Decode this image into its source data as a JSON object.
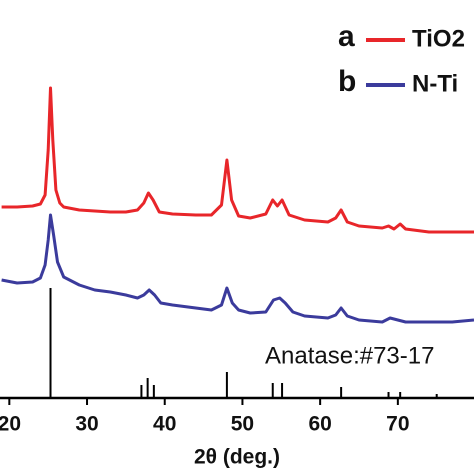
{
  "chart_data": {
    "type": "line",
    "xlabel": "2θ (deg.)",
    "xlim": [
      18.8,
      79.8
    ],
    "xticks": [
      20,
      30,
      40,
      50,
      60,
      70
    ],
    "ylim": [
      0,
      398
    ],
    "series": [
      {
        "name": "TiO2",
        "label": "a",
        "color": "#e8262a",
        "x": [
          19,
          21,
          23,
          24,
          24.6,
          25,
          25.3,
          25.6,
          26,
          26.5,
          27,
          29,
          31,
          33,
          35,
          36.5,
          37.3,
          37.9,
          38.5,
          39.3,
          41,
          44,
          46,
          47.3,
          48,
          48.6,
          49.5,
          51,
          53,
          53.9,
          54.5,
          55.1,
          56,
          58,
          61,
          62,
          62.7,
          63.5,
          65,
          68,
          68.8,
          69.5,
          70.3,
          71,
          74,
          77,
          79.8
        ],
        "values": [
          191,
          191,
          192,
          194,
          203,
          248,
          310,
          258,
          208,
          195,
          191,
          188,
          187,
          186,
          186,
          188,
          195,
          205,
          198,
          186,
          184,
          183,
          183,
          193,
          238,
          198,
          182,
          180,
          184,
          198,
          192,
          198,
          183,
          178,
          176,
          180,
          188,
          176,
          172,
          170,
          172,
          169,
          174,
          169,
          166,
          166,
          166
        ]
      },
      {
        "name": "N-Ti",
        "label": "b",
        "color": "#3b3b9c",
        "x": [
          19,
          21,
          23,
          24,
          24.6,
          25,
          25.3,
          25.7,
          26.2,
          27,
          29,
          31,
          33,
          35,
          36.5,
          37.3,
          38,
          38.7,
          39.5,
          41,
          44,
          46,
          47.3,
          48,
          48.7,
          49.5,
          51,
          53,
          54,
          54.8,
          55.5,
          56.5,
          58,
          61,
          62,
          62.7,
          63.5,
          65,
          68,
          69,
          70,
          71,
          74,
          77,
          79.8
        ],
        "values": [
          118,
          115,
          116,
          120,
          133,
          158,
          183,
          163,
          136,
          121,
          113,
          108,
          106,
          103,
          100,
          103,
          108,
          103,
          95,
          93,
          90,
          88,
          93,
          110,
          95,
          88,
          85,
          86,
          98,
          100,
          95,
          86,
          82,
          80,
          83,
          90,
          82,
          78,
          76,
          80,
          78,
          76,
          76,
          76,
          78
        ]
      }
    ],
    "reference": {
      "name": "Anatase:#73-17",
      "color": "#000000",
      "x": [
        25.3,
        37.0,
        37.8,
        38.6,
        48.0,
        53.9,
        55.1,
        62.7,
        68.8,
        70.3,
        75.0
      ],
      "values": [
        110,
        13,
        20,
        13,
        26,
        15,
        15,
        11,
        6,
        6,
        4
      ]
    }
  }
}
